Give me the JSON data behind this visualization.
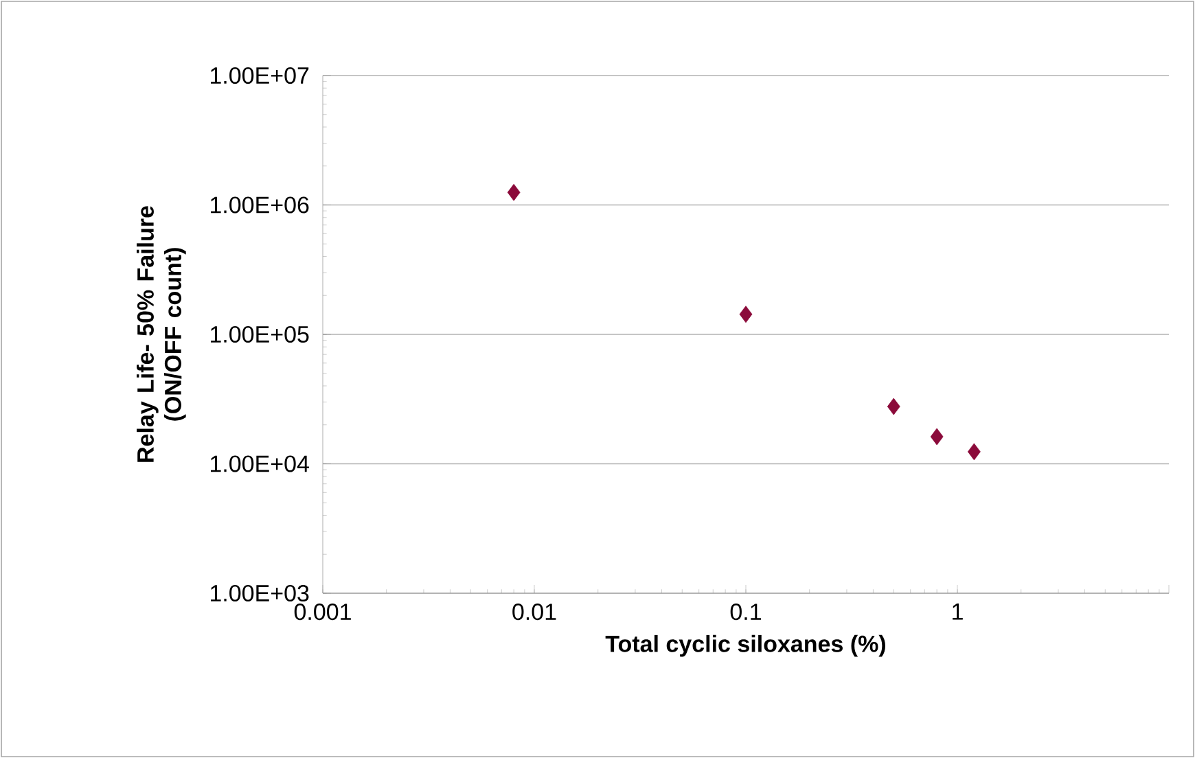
{
  "chart_data": {
    "type": "scatter",
    "xlabel": "Total cyclic siloxanes (%)",
    "ylabel": "Relay Life- 50% Failure (ON/OFF count)",
    "x": [
      0.008,
      0.1,
      0.5,
      0.8,
      1.2
    ],
    "values": [
      1250000,
      143000,
      27700,
      16200,
      12400
    ],
    "color": "#8b0a3a",
    "marker": "diamond",
    "log": "xy",
    "xlim": [
      0.001,
      10
    ],
    "xticks": [
      0.001,
      0.01,
      0.1,
      1,
      {
        "value": 10,
        "label": null
      }
    ],
    "ylim": [
      1000,
      10000000
    ],
    "yticks": [
      {
        "value": 1000,
        "label": "1.00E+03"
      },
      {
        "value": 10000,
        "label": "1.00E+04"
      },
      {
        "value": 100000,
        "label": "1.00E+05"
      },
      {
        "value": 1000000,
        "label": "1.00E+06"
      },
      {
        "value": 10000000,
        "label": "1.00E+07"
      }
    ],
    "grid": "y"
  }
}
